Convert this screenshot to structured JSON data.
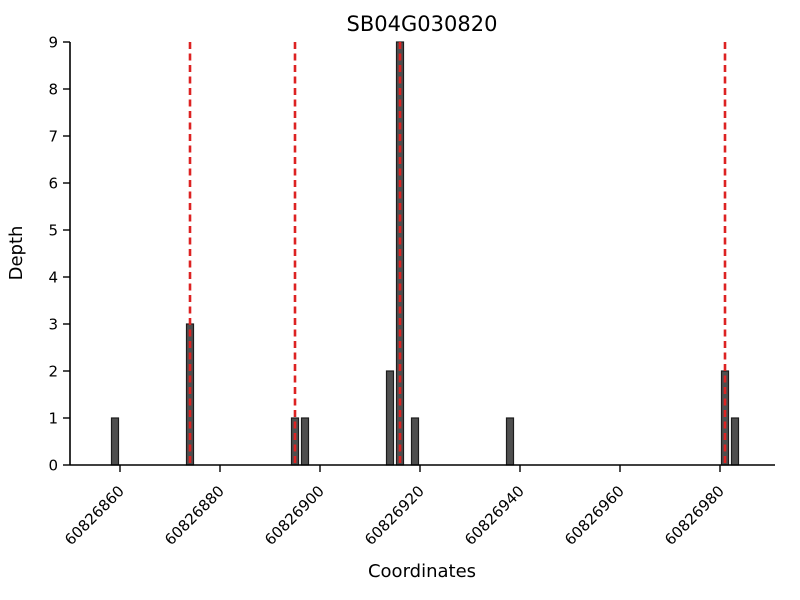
{
  "figure": {
    "background": "#ffffff"
  },
  "chart_data": {
    "type": "bar",
    "title": "SB04G030820",
    "xlabel": "Coordinates",
    "ylabel": "Depth",
    "xlim": [
      60826850,
      60826991
    ],
    "ylim": [
      0,
      9
    ],
    "x_ticks": [
      60826860,
      60826880,
      60826900,
      60826920,
      60826940,
      60826960,
      60826980
    ],
    "y_ticks": [
      0,
      1,
      2,
      3,
      4,
      5,
      6,
      7,
      8,
      9
    ],
    "bars": [
      {
        "x": 60826859,
        "depth": 1
      },
      {
        "x": 60826874,
        "depth": 3
      },
      {
        "x": 60826895,
        "depth": 1
      },
      {
        "x": 60826897,
        "depth": 1
      },
      {
        "x": 60826914,
        "depth": 2
      },
      {
        "x": 60826916,
        "depth": 9
      },
      {
        "x": 60826919,
        "depth": 1
      },
      {
        "x": 60826938,
        "depth": 1
      },
      {
        "x": 60826981,
        "depth": 2
      },
      {
        "x": 60826983,
        "depth": 1
      }
    ],
    "bar_width": 1.4,
    "marker_lines": [
      60826874,
      60826895,
      60826916,
      60826981
    ],
    "colors": {
      "bar_fill": "#4f4f4f",
      "bar_edge": "#1c1c1c",
      "marker_line": "#dd2222",
      "axis": "#000000",
      "text": "#000000"
    },
    "grid": false,
    "legend": null
  }
}
